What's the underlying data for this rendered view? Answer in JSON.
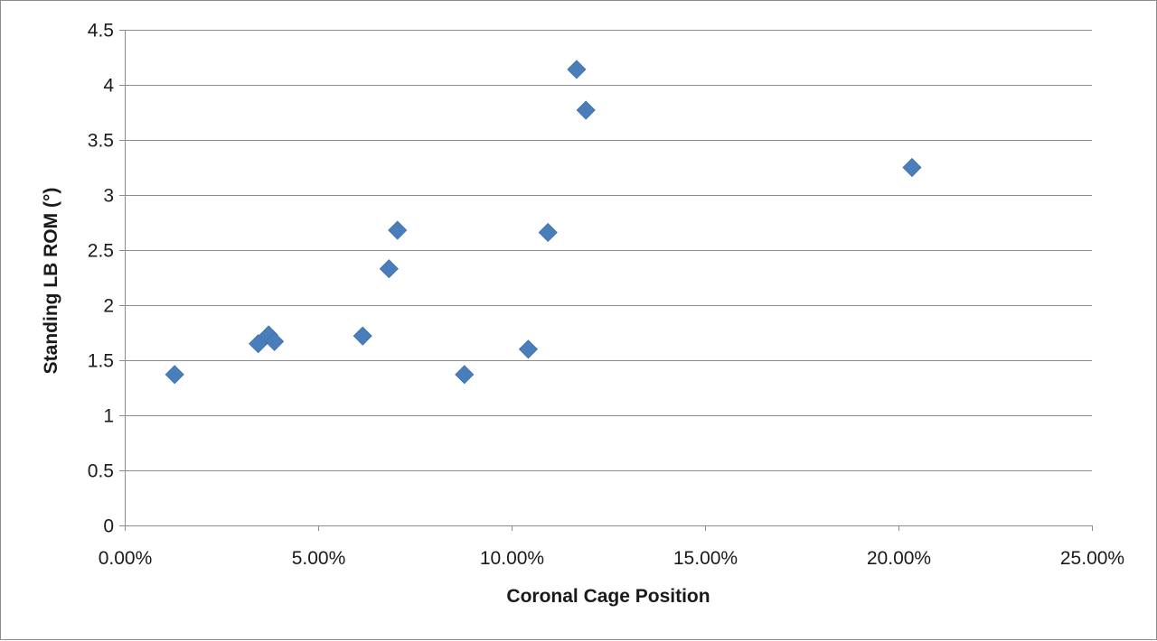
{
  "chart_data": {
    "type": "scatter",
    "title": "",
    "xlabel": "Coronal Cage Position",
    "ylabel": "Standing LB ROM (°)",
    "xlim": [
      0,
      0.25
    ],
    "ylim": [
      0,
      4.5
    ],
    "x_ticks": [
      0,
      0.05,
      0.1,
      0.15,
      0.2,
      0.25
    ],
    "x_tick_labels": [
      "0.00%",
      "5.00%",
      "10.00%",
      "15.00%",
      "20.00%",
      "25.00%"
    ],
    "y_ticks": [
      0,
      0.5,
      1,
      1.5,
      2,
      2.5,
      3,
      3.5,
      4,
      4.5
    ],
    "y_tick_labels": [
      "0",
      "0.5",
      "1",
      "1.5",
      "2",
      "2.5",
      "3",
      "3.5",
      "4",
      "4.5"
    ],
    "grid": "horizontal",
    "legend": "none",
    "marker": "diamond",
    "marker_color": "#4a7ebb",
    "series": [
      {
        "points": [
          {
            "x": 0.0129,
            "y": 1.37
          },
          {
            "x": 0.0345,
            "y": 1.65
          },
          {
            "x": 0.0372,
            "y": 1.73
          },
          {
            "x": 0.0387,
            "y": 1.67
          },
          {
            "x": 0.0615,
            "y": 1.72
          },
          {
            "x": 0.0683,
            "y": 2.33
          },
          {
            "x": 0.0705,
            "y": 2.68
          },
          {
            "x": 0.0878,
            "y": 1.37
          },
          {
            "x": 0.1043,
            "y": 1.6
          },
          {
            "x": 0.1094,
            "y": 2.66
          },
          {
            "x": 0.1168,
            "y": 4.14
          },
          {
            "x": 0.1192,
            "y": 3.77
          },
          {
            "x": 0.2035,
            "y": 3.25
          }
        ]
      }
    ]
  }
}
